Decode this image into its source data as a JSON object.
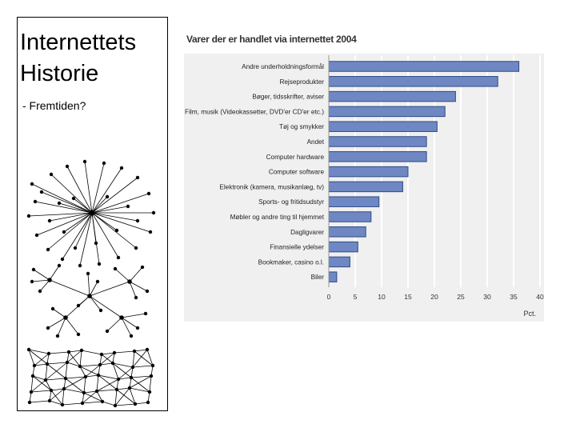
{
  "slide": {
    "title_line1": "Internettets",
    "title_line2": "Historie",
    "subtitle": "- Fremtiden?"
  },
  "chart_data": {
    "type": "bar",
    "orientation": "horizontal",
    "title": "Varer der er handlet via internettet 2004",
    "xlabel": "Pct.",
    "xlim": [
      0,
      40
    ],
    "xticks": [
      0,
      5,
      10,
      15,
      20,
      25,
      30,
      35,
      40
    ],
    "grid": true,
    "categories": [
      "Andre underholdningsformål",
      "Rejseprodukter",
      "Bøger, tidsskrifter, aviser",
      "Film, musik (Videokassetter, DVD'er CD'er etc.)",
      "Tøj og smykker",
      "Andet",
      "Computer hardware",
      "Computer software",
      "Elektronik (kamera, musikanlæg, tv)",
      "Sports- og fritidsudstyr",
      "Møbler og andre ting til hjemmet",
      "Dagligvarer",
      "Finansielle ydelser",
      "Bookmaker, casino o.l.",
      "Biler"
    ],
    "values": [
      36,
      32,
      24,
      22,
      20.5,
      18.5,
      18.5,
      15,
      14,
      9.5,
      8,
      7,
      5.5,
      4,
      1.5
    ],
    "colors": {
      "bar": "#6f88c3",
      "bar_edge": "#2f4a86",
      "plot_bg": "#f0f0f0",
      "grid": "#ffffff"
    }
  }
}
